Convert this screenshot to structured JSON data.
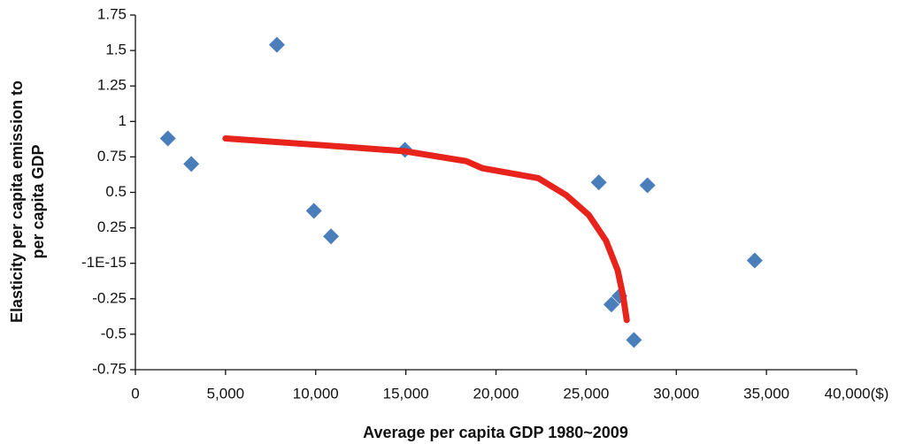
{
  "chart_data": {
    "type": "scatter",
    "x_label": "Average per capita GDP 1980~2009",
    "y_label": [
      "Elasticity per capita emission to",
      "per capita GDP"
    ],
    "xlim": [
      0,
      40000
    ],
    "xticks": [
      0,
      {
        "value": 5000,
        "label": "5,000"
      },
      {
        "value": 10000,
        "label": "10,000"
      },
      {
        "value": 15000,
        "label": "15,000"
      },
      {
        "value": 20000,
        "label": "20,000"
      },
      {
        "value": 25000,
        "label": "25,000"
      },
      {
        "value": 30000,
        "label": "30,000"
      },
      {
        "value": 35000,
        "label": "35,000"
      },
      {
        "value": 40000,
        "label": "40,000($)"
      }
    ],
    "ylim": [
      -0.75,
      1.75
    ],
    "yticks": [
      -0.75,
      -0.5,
      -0.25,
      {
        "value": 0,
        "label": "-1E-15"
      },
      0.25,
      0.5,
      0.75,
      1,
      1.25,
      1.5,
      1.75
    ],
    "grid": false,
    "series": [
      {
        "type": "scatter",
        "color": "#4a7ebb",
        "x": [
          1800,
          3100,
          7850,
          9900,
          10850,
          14950,
          25700,
          28400,
          34350,
          26850,
          26400,
          27650
        ],
        "values": [
          0.88,
          0.7,
          1.54,
          0.37,
          0.19,
          0.8,
          0.57,
          0.55,
          0.02,
          -0.23,
          -0.29,
          -0.54
        ]
      },
      {
        "type": "line",
        "color": "#e8231c",
        "x": [
          5000,
          10650,
          14950,
          18350,
          19250,
          22350,
          23900,
          25150,
          26100,
          26750,
          27050,
          27250
        ],
        "values": [
          0.88,
          0.83,
          0.79,
          0.72,
          0.67,
          0.6,
          0.48,
          0.34,
          0.16,
          -0.05,
          -0.23,
          -0.4
        ]
      }
    ]
  }
}
